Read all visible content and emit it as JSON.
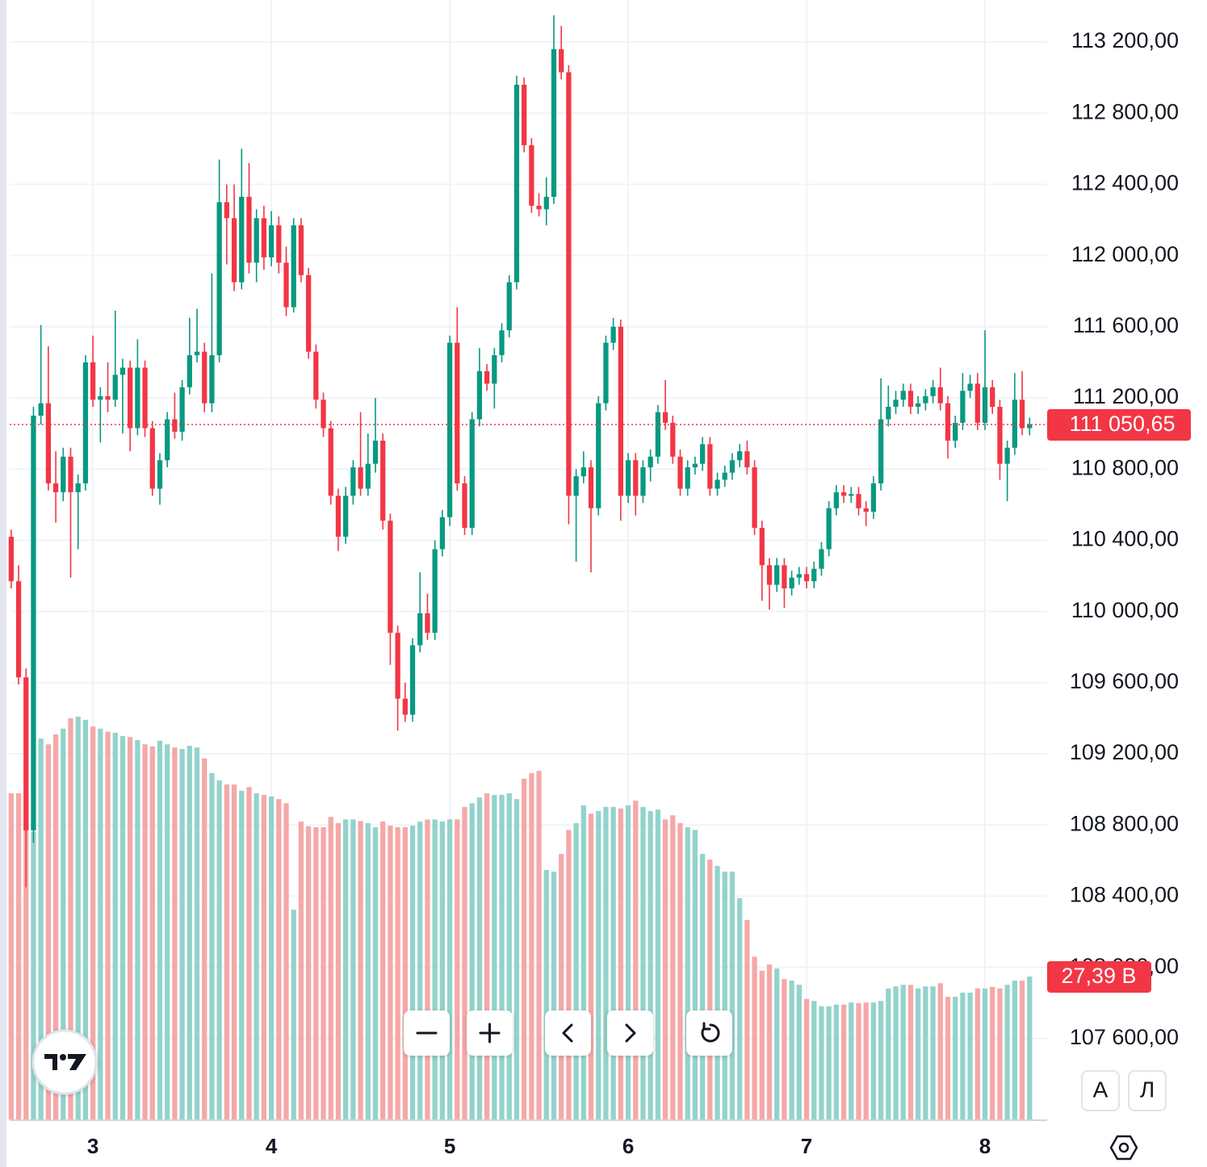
{
  "chart_data": {
    "type": "candlestick",
    "x": [
      0,
      1,
      2,
      3,
      4,
      5,
      6,
      7,
      8,
      9,
      10,
      11,
      12,
      13,
      14,
      15,
      16,
      17,
      18,
      19,
      20,
      21,
      22,
      23,
      24,
      25,
      26,
      27,
      28,
      29,
      30,
      31,
      32,
      33,
      34,
      35,
      36,
      37,
      38,
      39,
      40,
      41,
      42,
      43,
      44,
      45,
      46,
      47,
      48,
      49,
      50,
      51,
      52,
      53,
      54,
      55,
      56,
      57,
      58,
      59,
      60,
      61,
      62,
      63,
      64,
      65,
      66,
      67,
      68,
      69,
      70,
      71,
      72,
      73,
      74,
      75,
      76,
      77,
      78,
      79,
      80,
      81,
      82,
      83,
      84,
      85,
      86,
      87,
      88,
      89,
      90,
      91,
      92,
      93,
      94,
      95,
      96,
      97,
      98,
      99,
      100,
      101,
      102,
      103,
      104,
      105,
      106,
      107,
      108,
      109,
      110,
      111,
      112,
      113,
      114,
      115,
      116,
      117,
      118,
      119,
      120,
      121,
      122,
      123,
      124,
      125,
      126,
      127,
      128,
      129,
      130,
      131,
      132,
      133,
      134,
      135,
      136,
      137
    ],
    "open": [
      110420,
      110170,
      109630,
      108770,
      111100,
      111170,
      110720,
      110670,
      110870,
      110670,
      110720,
      111400,
      111190,
      111210,
      111190,
      111330,
      111370,
      111030,
      111370,
      111030,
      110690,
      110850,
      111080,
      111010,
      111260,
      111440,
      111460,
      111170,
      111440,
      112300,
      112210,
      111850,
      112330,
      111960,
      112210,
      111990,
      112170,
      111960,
      111710,
      112170,
      111890,
      111460,
      111190,
      111030,
      110650,
      110420,
      110650,
      110810,
      110690,
      110830,
      110960,
      110510,
      109880,
      109510,
      109420,
      109810,
      109990,
      109880,
      110350,
      110530,
      111510,
      110720,
      110470,
      111080,
      111350,
      111280,
      111440,
      111580,
      111850,
      112960,
      112620,
      112280,
      112260,
      112330,
      113160,
      113030,
      110650,
      110760,
      110810,
      110580,
      111170,
      111510,
      111600,
      110650,
      110850,
      110650,
      110810,
      110870,
      111120,
      111060,
      110870,
      110690,
      110810,
      110830,
      110940,
      110690,
      110740,
      110780,
      110850,
      110900,
      110810,
      110470,
      110260,
      110150,
      110260,
      110130,
      110190,
      110210,
      110170,
      110240,
      110350,
      110580,
      110670,
      110650,
      110660,
      110580,
      110560,
      110720,
      111080,
      111150,
      111190,
      111240,
      111150,
      111170,
      111210,
      111260,
      111170,
      110960,
      111060,
      111240,
      111280,
      111060,
      111260,
      111150,
      110830,
      110920,
      111190,
      111030
    ],
    "high": [
      110460,
      110260,
      109680,
      111150,
      111610,
      111490,
      110900,
      110920,
      110920,
      110770,
      111440,
      111550,
      111260,
      111400,
      111690,
      111420,
      111410,
      111530,
      111410,
      111070,
      110890,
      111120,
      111230,
      111300,
      111650,
      111700,
      111510,
      111900,
      112540,
      112400,
      112400,
      112600,
      112520,
      112260,
      112280,
      112250,
      112220,
      112050,
      112210,
      112210,
      111930,
      111500,
      111230,
      111070,
      110690,
      110700,
      110850,
      111120,
      111000,
      111200,
      111000,
      110550,
      109920,
      109600,
      109850,
      110220,
      110100,
      110400,
      110570,
      111550,
      111710,
      110760,
      111120,
      111480,
      111390,
      111480,
      111620,
      111890,
      113010,
      113000,
      112660,
      112350,
      112440,
      113350,
      113290,
      113070,
      110800,
      110900,
      110850,
      111210,
      111550,
      111650,
      111640,
      110890,
      110890,
      110850,
      110910,
      111160,
      111300,
      111100,
      110910,
      110850,
      110870,
      110980,
      110980,
      110780,
      110820,
      110890,
      110940,
      110960,
      110850,
      110510,
      110300,
      110300,
      110300,
      110230,
      110250,
      110250,
      110280,
      110390,
      110620,
      110710,
      110710,
      110700,
      110700,
      110620,
      110760,
      111310,
      111270,
      111240,
      111280,
      111280,
      111210,
      111250,
      111300,
      111370,
      111210,
      111100,
      111340,
      111330,
      111340,
      111580,
      111300,
      111190,
      110960,
      111340,
      111350,
      111090
    ],
    "low": [
      110130,
      109590,
      108450,
      108700,
      111050,
      110680,
      110500,
      110620,
      110190,
      110350,
      110680,
      111150,
      110950,
      111120,
      111150,
      111000,
      110900,
      110990,
      110980,
      110650,
      110600,
      110810,
      110970,
      110960,
      111220,
      111400,
      111120,
      111120,
      111400,
      111950,
      111800,
      111810,
      111900,
      111850,
      111920,
      111940,
      111900,
      111660,
      111680,
      111850,
      111420,
      111140,
      110980,
      110600,
      110340,
      110380,
      110600,
      110650,
      110650,
      110780,
      110460,
      109700,
      109330,
      109380,
      109380,
      109770,
      109840,
      109840,
      110310,
      110480,
      110680,
      110430,
      110430,
      111040,
      111240,
      111140,
      111400,
      111540,
      111810,
      112580,
      112240,
      112220,
      112170,
      112290,
      112990,
      110490,
      110280,
      110720,
      110220,
      110540,
      111130,
      111470,
      110510,
      110610,
      110540,
      110610,
      110730,
      110830,
      111020,
      110830,
      110650,
      110650,
      110770,
      110790,
      110650,
      110650,
      110700,
      110740,
      110810,
      110770,
      110430,
      110060,
      110010,
      110110,
      110020,
      110090,
      110150,
      110130,
      110130,
      110200,
      110310,
      110540,
      110610,
      110610,
      110540,
      110480,
      110520,
      110680,
      111040,
      111110,
      111150,
      111110,
      111110,
      111130,
      111170,
      111130,
      110860,
      110920,
      111020,
      111200,
      111020,
      111020,
      111110,
      110740,
      110620,
      110880,
      110990,
      110990
    ],
    "close": [
      110170,
      109630,
      108770,
      111100,
      111170,
      110720,
      110670,
      110870,
      110670,
      110720,
      111400,
      111190,
      111210,
      111190,
      111330,
      111370,
      111030,
      111370,
      111030,
      110690,
      110850,
      111080,
      111010,
      111260,
      111440,
      111460,
      111170,
      111440,
      112300,
      112210,
      111850,
      112330,
      111960,
      112210,
      111990,
      112170,
      111960,
      111710,
      112170,
      111890,
      111460,
      111190,
      111030,
      110650,
      110420,
      110650,
      110810,
      110690,
      110830,
      110960,
      110510,
      109880,
      109510,
      109420,
      109810,
      109990,
      109880,
      110350,
      110530,
      111510,
      110720,
      110470,
      111080,
      111350,
      111280,
      111440,
      111580,
      111850,
      112960,
      112620,
      112280,
      112260,
      112330,
      113160,
      113030,
      110650,
      110760,
      110810,
      110580,
      111170,
      111510,
      111600,
      110650,
      110850,
      110650,
      110810,
      110870,
      111120,
      111060,
      110870,
      110690,
      110810,
      110830,
      110940,
      110690,
      110740,
      110780,
      110850,
      110900,
      110810,
      110470,
      110260,
      110150,
      110260,
      110130,
      110190,
      110210,
      110170,
      110240,
      110350,
      110580,
      110670,
      110650,
      110660,
      110580,
      110560,
      110720,
      111080,
      111150,
      111190,
      111240,
      111150,
      111170,
      111210,
      111260,
      111170,
      110960,
      111060,
      111240,
      111280,
      111060,
      111260,
      111150,
      110830,
      110920,
      111190,
      111030,
      111050.65
    ],
    "volume": [
      62.5,
      62.5,
      62.5,
      55.2,
      73.0,
      71.9,
      73.8,
      74.9,
      76.9,
      77.2,
      76.6,
      75.3,
      74.9,
      74.3,
      74.1,
      73.5,
      73.3,
      72.7,
      71.9,
      71.5,
      72.6,
      71.9,
      71.3,
      71.0,
      71.6,
      71.3,
      69.2,
      66.4,
      65.0,
      64.2,
      64.2,
      63.0,
      63.7,
      62.5,
      62.2,
      61.9,
      61.4,
      60.6,
      40.2,
      57.1,
      56.2,
      56.0,
      56.0,
      58.0,
      56.8,
      57.5,
      57.5,
      57.2,
      56.8,
      56.0,
      57.1,
      56.3,
      56.0,
      56.0,
      56.3,
      57.1,
      57.5,
      57.5,
      57.1,
      57.5,
      57.5,
      59.9,
      60.6,
      61.7,
      62.5,
      62.2,
      62.2,
      62.5,
      61.4,
      65.3,
      66.4,
      66.8,
      47.8,
      47.5,
      50.9,
      55.5,
      56.8,
      60.2,
      58.6,
      59.1,
      59.9,
      59.9,
      59.6,
      60.2,
      61.1,
      59.9,
      59.1,
      59.4,
      57.5,
      58.3,
      56.8,
      56.0,
      55.5,
      50.9,
      49.8,
      48.6,
      47.5,
      47.5,
      42.4,
      38.2,
      31.2,
      28.5,
      29.7,
      28.9,
      26.9,
      26.6,
      25.8,
      23.1,
      22.7,
      21.7,
      21.7,
      22.0,
      22.0,
      22.4,
      22.3,
      22.4,
      22.4,
      22.7,
      25.1,
      25.5,
      25.8,
      25.8,
      25.1,
      25.5,
      25.5,
      26.1,
      23.5,
      23.5,
      24.3,
      24.3,
      25.1,
      25.1,
      25.4,
      25.1,
      25.8,
      26.6,
      26.6,
      27.39
    ],
    "last_price_label": "111 050,65",
    "last_volume_label": "27,39 B",
    "ylim": [
      107146,
      113436
    ],
    "yticks": [
      {
        "value": 107600,
        "label": "107 600,00"
      },
      {
        "value": 108000,
        "label": "108 000,00"
      },
      {
        "value": 108400,
        "label": "108 400,00"
      },
      {
        "value": 108800,
        "label": "108 800,00"
      },
      {
        "value": 109200,
        "label": "109 200,00"
      },
      {
        "value": 109600,
        "label": "109 600,00"
      },
      {
        "value": 110000,
        "label": "110 000,00"
      },
      {
        "value": 110400,
        "label": "110 400,00"
      },
      {
        "value": 110800,
        "label": "110 800,00"
      },
      {
        "value": 111200,
        "label": "111 200,00"
      },
      {
        "value": 111600,
        "label": "111 600,00"
      },
      {
        "value": 112000,
        "label": "112 000,00"
      },
      {
        "value": 112400,
        "label": "112 400,00"
      },
      {
        "value": 112800,
        "label": "112 800,00"
      },
      {
        "value": 113200,
        "label": "113 200,00"
      }
    ],
    "xlim": [
      -0.2,
      138.6
    ],
    "xticks": [
      {
        "value": 11,
        "label": "3"
      },
      {
        "value": 35,
        "label": "4"
      },
      {
        "value": 59,
        "label": "5"
      },
      {
        "value": 83,
        "label": "6"
      },
      {
        "value": 107,
        "label": "7"
      },
      {
        "value": 131,
        "label": "8"
      }
    ],
    "grid": true,
    "up_color": "#089981",
    "down_color": "#f23645",
    "volume_up_color": "#93d3cb",
    "volume_down_color": "#f5a8a8"
  },
  "ui": {
    "auto_button": "А",
    "log_button": "Л"
  }
}
